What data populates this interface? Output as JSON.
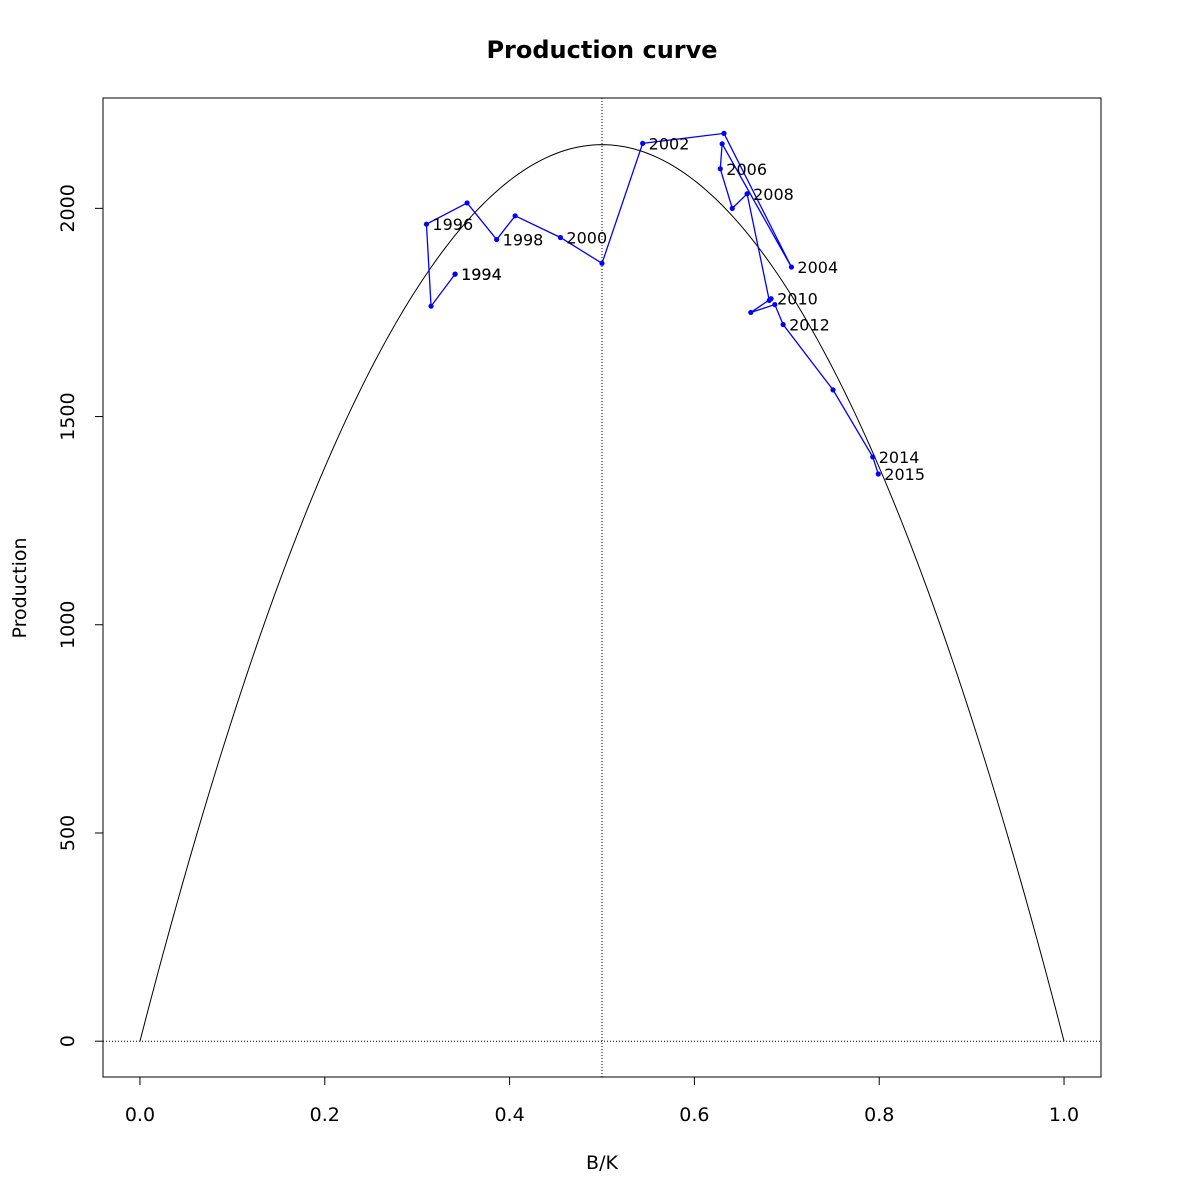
{
  "chart_data": {
    "type": "line",
    "title": "Production curve",
    "xlabel": "B/K",
    "ylabel": "Production",
    "xlim": [
      -0.04,
      1.04
    ],
    "ylim": [
      -86,
      2265
    ],
    "x_ticks": [
      0.0,
      0.2,
      0.4,
      0.6,
      0.8,
      1.0
    ],
    "x_tick_labels": [
      "0.0",
      "0.2",
      "0.4",
      "0.6",
      "0.8",
      "1.0"
    ],
    "y_ticks": [
      0,
      500,
      1000,
      1500,
      2000
    ],
    "y_tick_labels": [
      "0",
      "500",
      "1000",
      "1500",
      "2000"
    ],
    "grid": false,
    "reference_lines": {
      "vertical_x": 0.5,
      "horizontal_y": 0
    },
    "curve": {
      "type": "parabola",
      "peak_x": 0.5,
      "peak_y": 2153,
      "zeros": [
        0.0,
        1.0
      ],
      "color": "#000000"
    },
    "series": [
      {
        "color": "#0000ff",
        "points": [
          {
            "x": 0.341,
            "y": 1842,
            "label": "1994"
          },
          {
            "x": 0.341,
            "y": 1842,
            "label": "1994"
          },
          {
            "x": 0.315,
            "y": 1765,
            "label": ""
          },
          {
            "x": 0.31,
            "y": 1962,
            "label": "1996"
          },
          {
            "x": 0.354,
            "y": 2013,
            "label": ""
          },
          {
            "x": 0.386,
            "y": 1925,
            "label": "1998"
          },
          {
            "x": 0.406,
            "y": 1982,
            "label": ""
          },
          {
            "x": 0.455,
            "y": 1930,
            "label": "2000"
          },
          {
            "x": 0.5,
            "y": 1868,
            "label": ""
          },
          {
            "x": 0.544,
            "y": 2156,
            "label": "2002"
          },
          {
            "x": 0.632,
            "y": 2180,
            "label": ""
          },
          {
            "x": 0.705,
            "y": 1859,
            "label": "2004"
          },
          {
            "x": 0.63,
            "y": 2155,
            "label": ""
          },
          {
            "x": 0.628,
            "y": 2095,
            "label": "2006"
          },
          {
            "x": 0.641,
            "y": 2000,
            "label": ""
          },
          {
            "x": 0.657,
            "y": 2035,
            "label": "2008"
          },
          {
            "x": 0.681,
            "y": 1779,
            "label": ""
          },
          {
            "x": 0.683,
            "y": 1783,
            "label": "2010"
          },
          {
            "x": 0.661,
            "y": 1750,
            "label": ""
          },
          {
            "x": 0.687,
            "y": 1769,
            "label": ""
          },
          {
            "x": 0.696,
            "y": 1721,
            "label": "2012"
          },
          {
            "x": 0.75,
            "y": 1564,
            "label": ""
          },
          {
            "x": 0.793,
            "y": 1403,
            "label": "2014"
          },
          {
            "x": 0.799,
            "y": 1362,
            "label": "2015"
          }
        ]
      }
    ]
  }
}
